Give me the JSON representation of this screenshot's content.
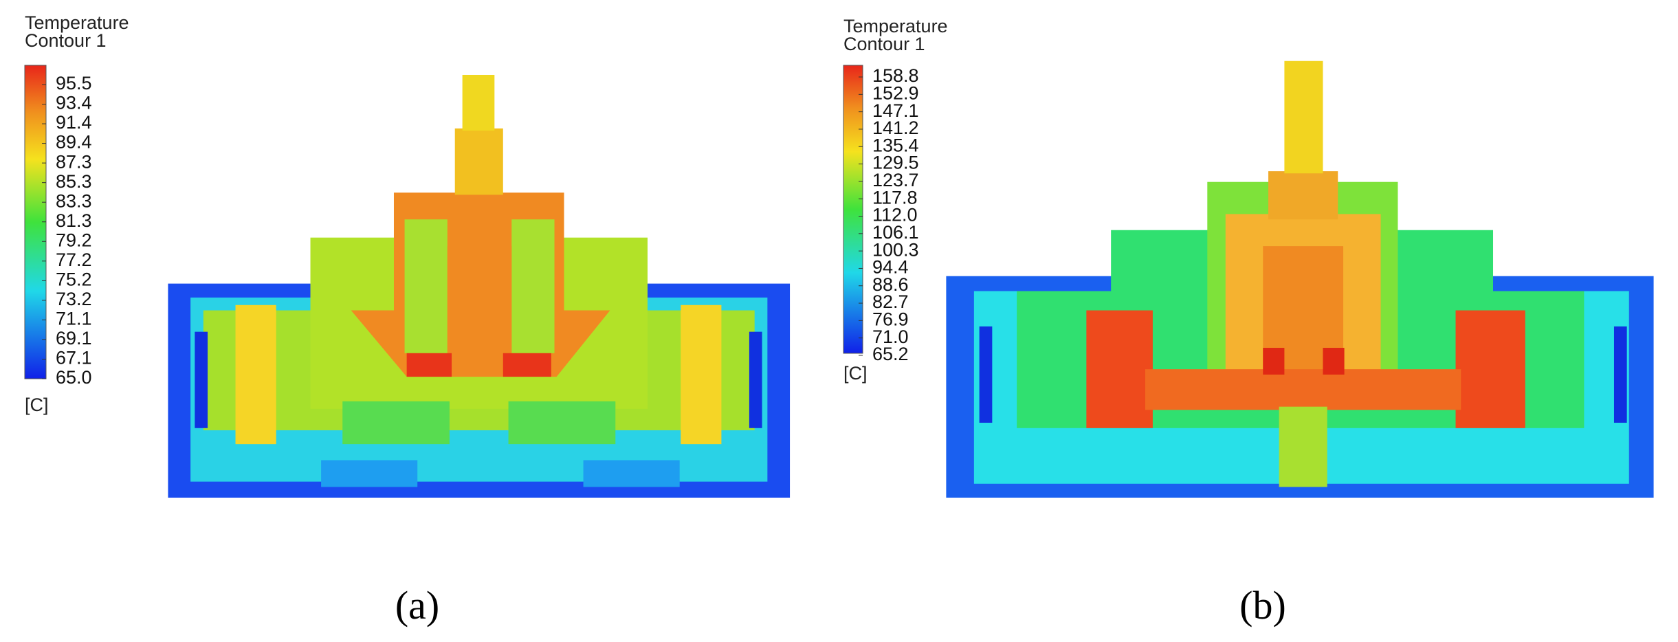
{
  "panels": [
    {
      "legend_title": "Temperature",
      "legend_subtitle": "Contour 1",
      "ticks": [
        "95.5",
        "93.4",
        "91.4",
        "89.4",
        "87.3",
        "85.3",
        "83.3",
        "81.3",
        "79.2",
        "77.2",
        "75.2",
        "73.2",
        "71.1",
        "69.1",
        "67.1",
        "65.0"
      ],
      "unit": "[C]",
      "caption": "(a)"
    },
    {
      "legend_title": "Temperature",
      "legend_subtitle": "Contour 1",
      "ticks": [
        "158.8",
        "152.9",
        "147.1",
        "141.2",
        "135.4",
        "129.5",
        "123.7",
        "117.8",
        "112.0",
        "106.1",
        "100.3",
        "94.4",
        "88.6",
        "82.7",
        "76.9",
        "71.0",
        "65.2"
      ],
      "unit": "[C]",
      "caption": "(b)"
    }
  ]
}
